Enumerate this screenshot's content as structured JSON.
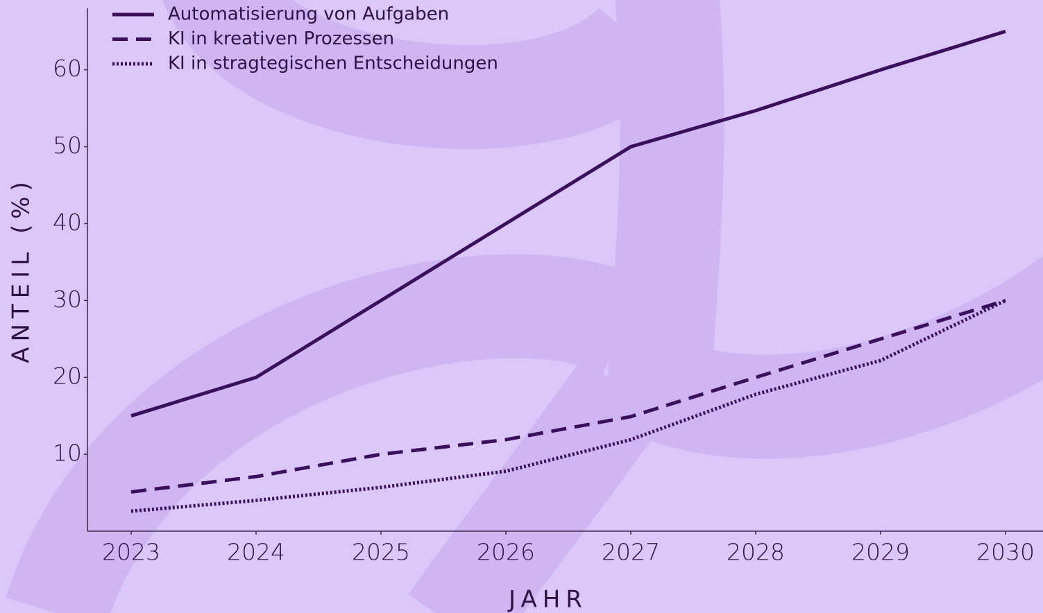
{
  "chart_data": {
    "type": "line",
    "x": [
      2023,
      2024,
      2025,
      2026,
      2027,
      2028,
      2029,
      2030
    ],
    "series": [
      {
        "name": "Automatisierung von Aufgaben",
        "color": "#3a0f5c",
        "linestyle": "solid",
        "values": [
          15,
          20,
          30,
          40,
          50,
          54.7,
          60,
          65
        ]
      },
      {
        "name": "KI in kreativen Prozessen",
        "color": "#3a0f5c",
        "linestyle": "dashed",
        "values": [
          5.1,
          7.1,
          10,
          11.9,
          14.9,
          20,
          25,
          30
        ]
      },
      {
        "name": "KI in stragtegischen Entscheidungen",
        "color": "#3a0f5c",
        "linestyle": "dotted",
        "values": [
          2.6,
          4,
          5.7,
          7.8,
          11.9,
          17.8,
          22.2,
          30
        ]
      }
    ],
    "xlabel": "JAHR",
    "ylabel": "ANTEIL (%)",
    "xlim": [
      2022.65,
      2030.3
    ],
    "ylim": [
      0,
      68
    ],
    "xticks": [
      2023,
      2024,
      2025,
      2026,
      2027,
      2028,
      2029,
      2030
    ],
    "yticks": [
      10,
      20,
      30,
      40,
      50,
      60
    ],
    "legend": "upper left",
    "grid": false
  }
}
